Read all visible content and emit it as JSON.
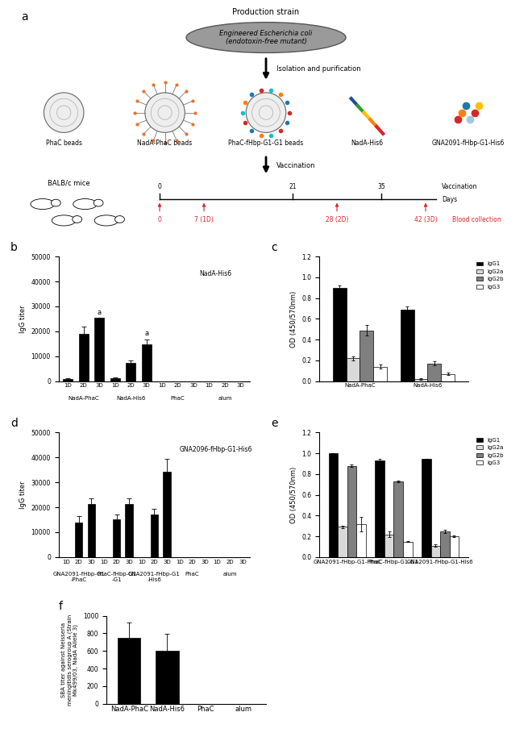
{
  "diagram": {
    "panel": "a",
    "title": "Production strain",
    "strain_label": [
      "Engineered Escherichia coli",
      "(endotoxin-free mutant)"
    ],
    "step": "Isolation and purification",
    "products": [
      "PhaC beads",
      "NadA-PhaC beads",
      "PhaC-fHbp-G1-G1 beads",
      "NadA-His6",
      "GNA2091-fHbp-G1-His6"
    ],
    "vaccination_step": "Vaccination",
    "mice_label": "BALB/c mice",
    "timeline": {
      "vaccination_label": "Vaccination",
      "vaccination_days": [
        0,
        21,
        35
      ],
      "axis_label": "Days",
      "blood_label": "Blood collection",
      "blood_collection": [
        {
          "value": 0,
          "label": "0"
        },
        {
          "value": 7,
          "label": "7 (1D)"
        },
        {
          "value": 28,
          "label": "28 (2D)"
        },
        {
          "value": 42,
          "label": "42 (3D)"
        }
      ]
    }
  },
  "chart_data": [
    {
      "panel": "b",
      "type": "bar",
      "ylabel": "IgG titer",
      "inset_label": "NadA-His6",
      "categories": [
        "1D",
        "2D",
        "3D",
        "1D",
        "2D",
        "3D",
        "1D",
        "2D",
        "3D",
        "1D",
        "2D",
        "3D"
      ],
      "groups": [
        "NadA-PhaC",
        "NadA-His6",
        "PhaC",
        "alum"
      ],
      "values": [
        1000,
        19000,
        25500,
        1200,
        7200,
        14800,
        0,
        0,
        0,
        0,
        0,
        0
      ],
      "errors": [
        300,
        3000,
        0,
        300,
        1000,
        2000,
        0,
        0,
        0,
        0,
        0,
        0
      ],
      "color": "#000000",
      "ylim": [
        0,
        50000
      ],
      "yticks": [
        0,
        10000,
        20000,
        30000,
        40000,
        50000
      ],
      "annotations": [
        {
          "text": "a",
          "index": 2
        },
        {
          "text": "a",
          "index": 5
        }
      ]
    },
    {
      "panel": "c",
      "type": "bar",
      "ylabel": "OD (450/570nm)",
      "legend": "upper left",
      "categories": [
        "NadA-PhaC",
        "NadA-His6"
      ],
      "series": [
        {
          "name": "IgG1",
          "color": "#000000",
          "values": [
            0.9,
            0.69
          ],
          "errors": [
            0.02,
            0.03
          ]
        },
        {
          "name": "IgG2a",
          "color": "#d9d9d9",
          "values": [
            0.22,
            0.02
          ],
          "errors": [
            0.02,
            0.005
          ]
        },
        {
          "name": "IgG2b",
          "color": "#7f7f7f",
          "values": [
            0.49,
            0.17
          ],
          "errors": [
            0.05,
            0.02
          ]
        },
        {
          "name": "IgG3",
          "color": "#ffffff",
          "values": [
            0.14,
            0.07
          ],
          "errors": [
            0.02,
            0.01
          ]
        }
      ],
      "ylim": [
        0,
        1.2
      ],
      "yticks": [
        {
          "value": 0,
          "label": "0.0"
        },
        {
          "value": 0.2,
          "label": "0.2"
        },
        {
          "value": 0.4,
          "label": "0.4"
        },
        {
          "value": 0.6,
          "label": "0.6"
        },
        {
          "value": 0.8,
          "label": "0.8"
        },
        {
          "value": 1.0,
          "label": "1.0"
        },
        {
          "value": 1.2,
          "label": "1.2"
        }
      ]
    },
    {
      "panel": "d",
      "type": "bar",
      "ylabel": "IgG titer",
      "inset_label": "GNA2096-fHbp-G1-His6",
      "categories": [
        "1D",
        "2D",
        "3D",
        "1D",
        "2D",
        "3D",
        "1D",
        "2D",
        "3D",
        "1D",
        "2D",
        "3D",
        "1D",
        "2D",
        "3D"
      ],
      "groups": [
        "GNA2091-fHbp-G1-PhaC",
        "PhaC-fHbp-G1-G1",
        "GNA2091-fHbp-G1-His6",
        "PhaC",
        "alum"
      ],
      "values": [
        0,
        13800,
        21200,
        0,
        15000,
        21200,
        0,
        17000,
        34200,
        0,
        0,
        0,
        0,
        0,
        0
      ],
      "errors": [
        0,
        2500,
        2500,
        0,
        2000,
        2500,
        0,
        2500,
        5200,
        0,
        0,
        0,
        0,
        0,
        0
      ],
      "color": "#000000",
      "ylim": [
        0,
        50000
      ],
      "yticks": [
        0,
        10000,
        20000,
        30000,
        40000,
        50000
      ]
    },
    {
      "panel": "e",
      "type": "bar",
      "ylabel": "OD (450/570nm)",
      "legend": "upper left",
      "categories": [
        "GNA2091-fHbp-G1-PhaC",
        "PhaC-fHbp-G1-G1",
        "GNA2091-fHbp-G1-His6"
      ],
      "series": [
        {
          "name": "IgG1",
          "color": "#000000",
          "values": [
            1.0,
            0.93,
            0.95
          ],
          "errors": [
            0.0,
            0.015,
            0.0
          ]
        },
        {
          "name": "IgG2a",
          "color": "#d9d9d9",
          "values": [
            0.29,
            0.22,
            0.11
          ],
          "errors": [
            0.01,
            0.03,
            0.01
          ]
        },
        {
          "name": "IgG2b",
          "color": "#7f7f7f",
          "values": [
            0.88,
            0.73,
            0.25
          ],
          "errors": [
            0.01,
            0.01,
            0.015
          ]
        },
        {
          "name": "IgG3",
          "color": "#ffffff",
          "values": [
            0.32,
            0.15,
            0.2
          ],
          "errors": [
            0.07,
            0.005,
            0.005
          ]
        }
      ],
      "ylim": [
        0,
        1.2
      ],
      "yticks": [
        {
          "value": 0,
          "label": "0.0"
        },
        {
          "value": 0.2,
          "label": "0.2"
        },
        {
          "value": 0.4,
          "label": "0.4"
        },
        {
          "value": 0.6,
          "label": "0.6"
        },
        {
          "value": 0.8,
          "label": "0.8"
        },
        {
          "value": 1.0,
          "label": "1.0"
        },
        {
          "value": 1.2,
          "label": "1.2"
        }
      ]
    },
    {
      "panel": "f",
      "type": "bar",
      "ylabel": "SBA titer against Neisseria meningitidis serogroup A (Strain Mk499/03, NadA Allele 3)",
      "categories": [
        "NadA-PhaC",
        "NadA-His6",
        "PhaC",
        "alum"
      ],
      "values": [
        750,
        600,
        0,
        0
      ],
      "errors": [
        175,
        190,
        0,
        0
      ],
      "color": "#000000",
      "ylim": [
        0,
        1000
      ],
      "yticks": [
        0,
        200,
        400,
        600,
        800,
        1000
      ]
    }
  ]
}
